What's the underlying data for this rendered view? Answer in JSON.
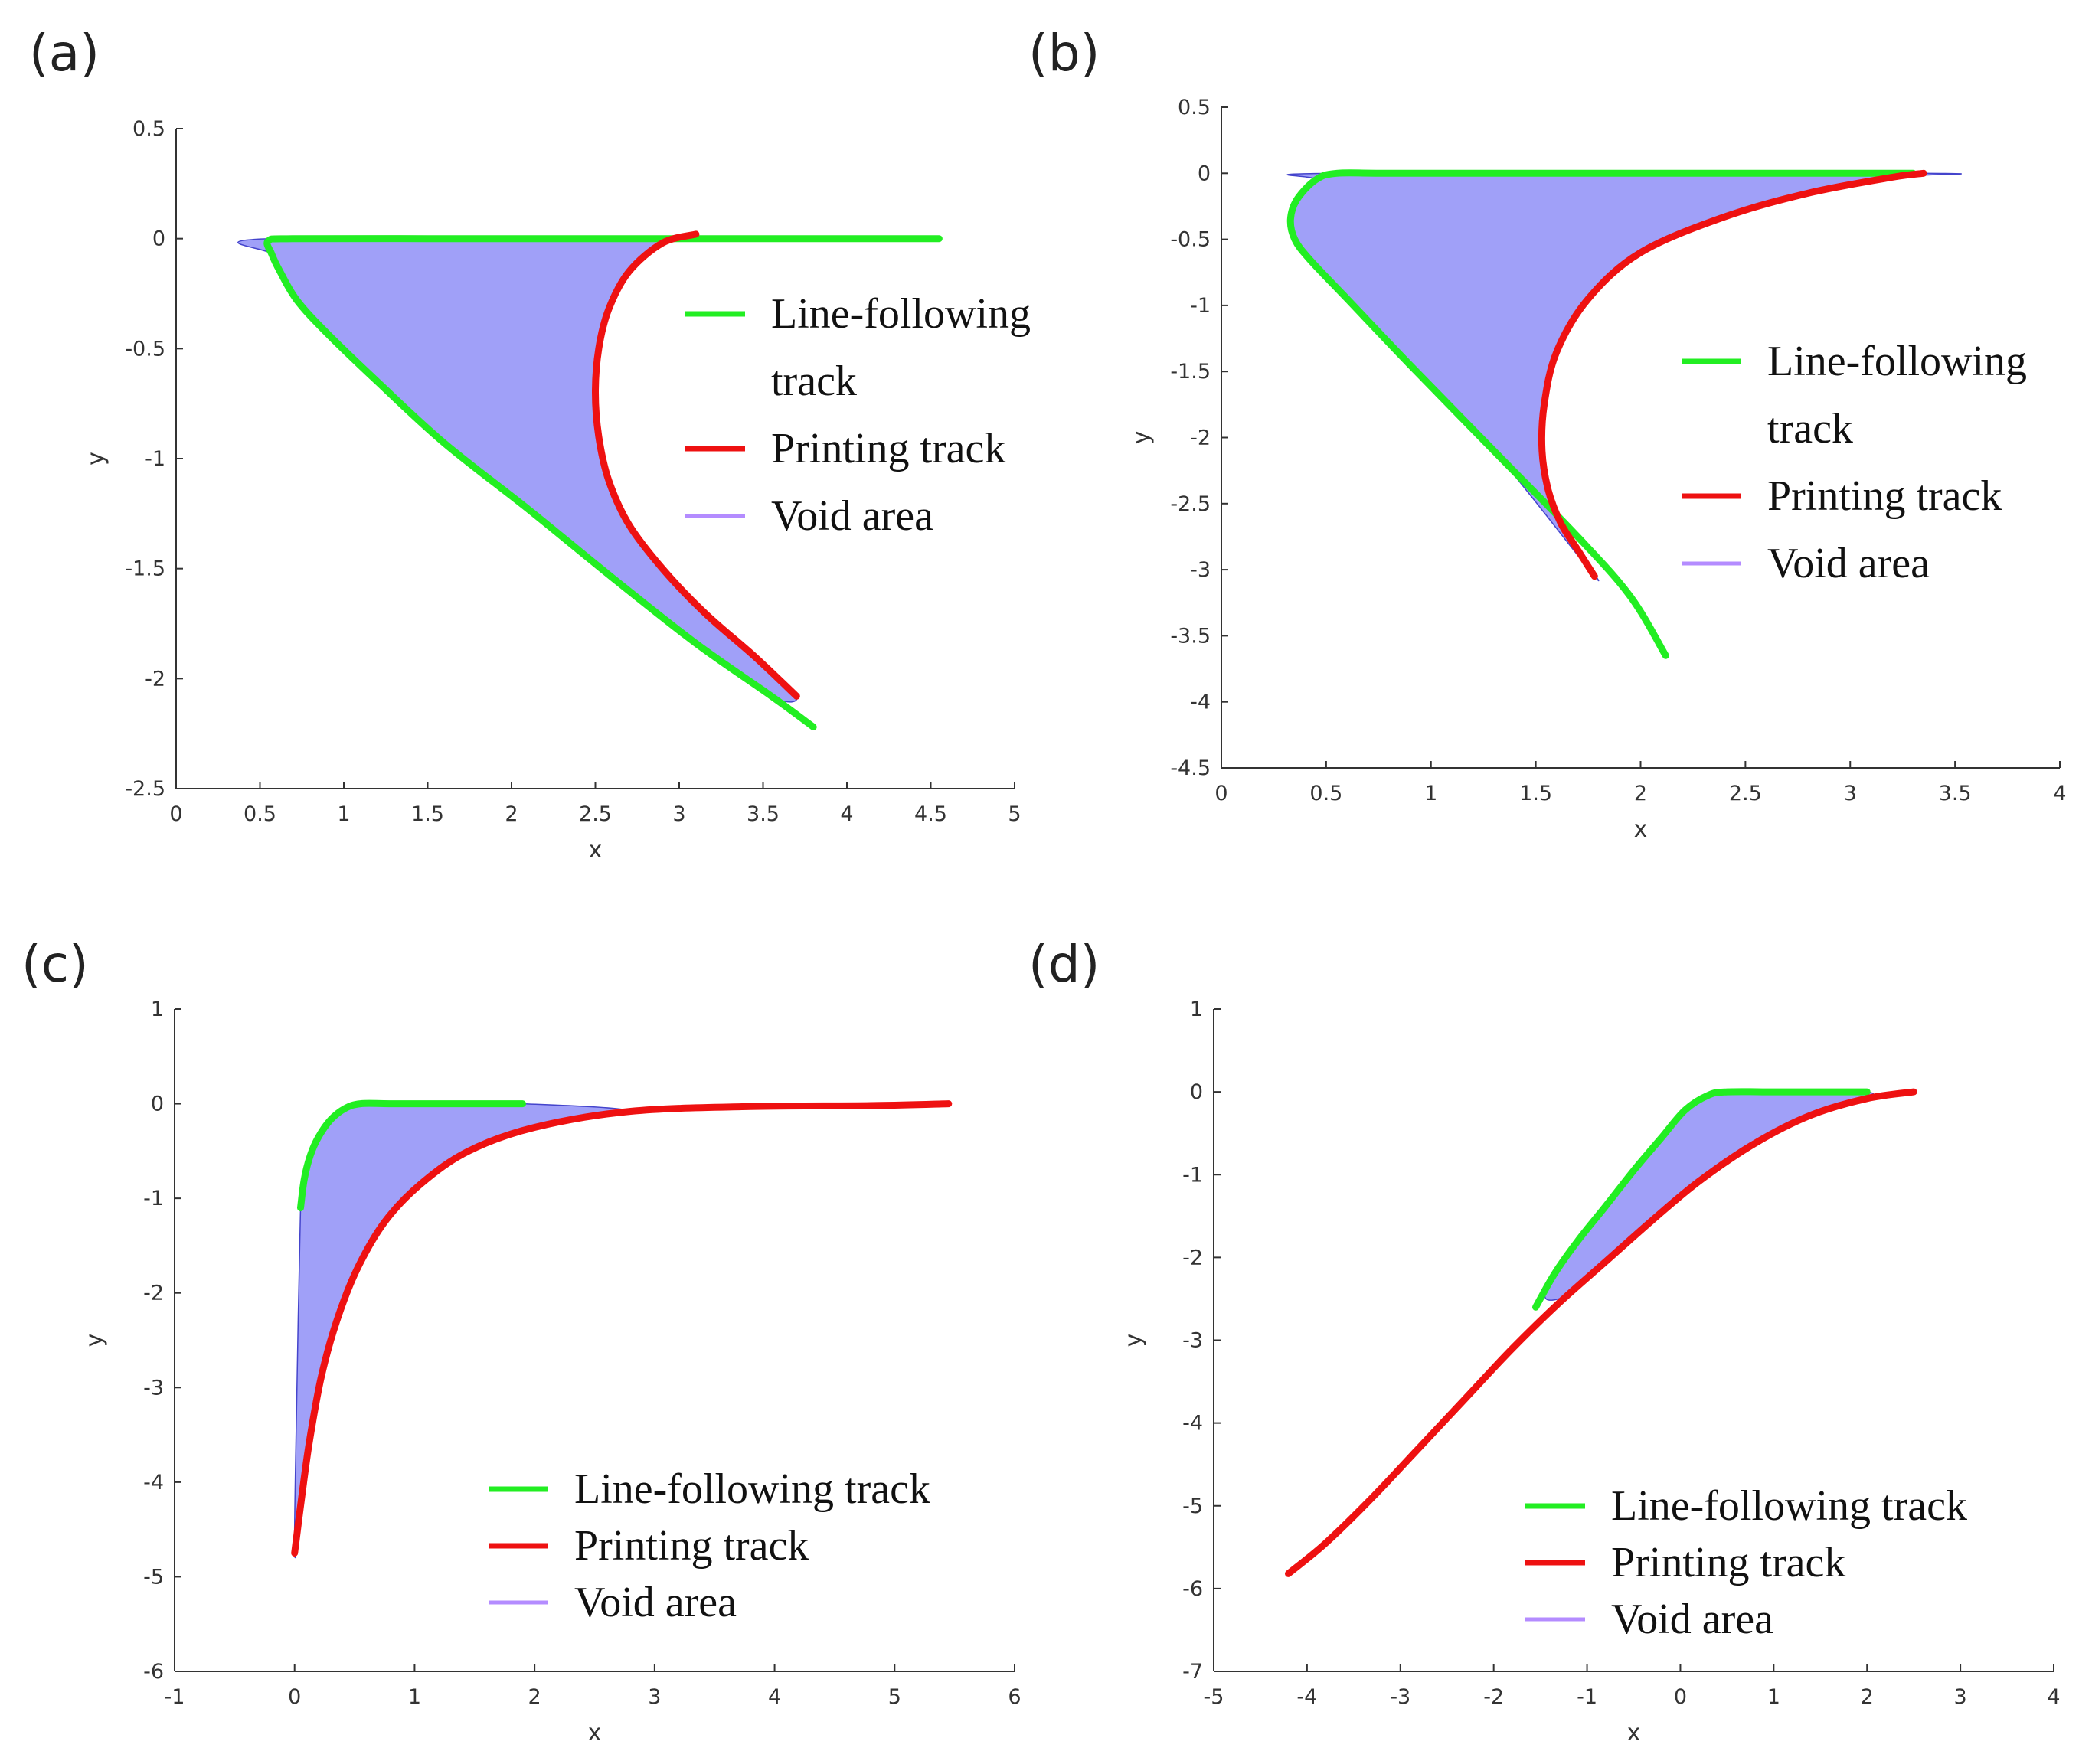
{
  "figure": {
    "colors": {
      "line_following": "#22ee22",
      "printing": "#ee1111",
      "void_fill": "#a0a0f8",
      "void_legend": "#b48cff",
      "axis": "#333333"
    }
  },
  "chart_data": [
    {
      "panel_label": "(a)",
      "type": "line",
      "xlabel": "x",
      "ylabel": "y",
      "xlim": [
        0,
        5
      ],
      "ylim": [
        -2.5,
        0.5
      ],
      "xticks": [
        0,
        0.5,
        1,
        1.5,
        2,
        2.5,
        3,
        3.5,
        4,
        4.5,
        5
      ],
      "yticks": [
        -2.5,
        -2,
        -1.5,
        -1,
        -0.5,
        0,
        0.5
      ],
      "xtick_labels": [
        "0",
        "0.5",
        "1",
        "1.5",
        "2",
        "2.5",
        "3",
        "3.5",
        "4",
        "4.5",
        "5"
      ],
      "ytick_labels": [
        "-2.5",
        "-2",
        "-1.5",
        "-1",
        "-0.5",
        "0",
        "0.5"
      ],
      "legend": {
        "position": "center-right",
        "entries": [
          {
            "key": "line_following",
            "label": [
              "Line-following",
              "track"
            ]
          },
          {
            "key": "printing",
            "label": [
              "Printing track"
            ]
          },
          {
            "key": "void",
            "label": [
              "Void area"
            ]
          }
        ]
      },
      "series": [
        {
          "name": "Line-following track",
          "key": "line_following",
          "x": [
            4.55,
            3.5,
            2.5,
            1.5,
            0.7,
            0.55,
            0.57,
            0.62,
            0.72,
            0.9,
            1.2,
            1.6,
            2.1,
            2.6,
            3.1,
            3.55,
            3.8
          ],
          "y": [
            0,
            0,
            0,
            0,
            0,
            -0.01,
            -0.07,
            -0.15,
            -0.28,
            -0.43,
            -0.65,
            -0.93,
            -1.23,
            -1.54,
            -1.84,
            -2.08,
            -2.22
          ]
        },
        {
          "name": "Printing track",
          "key": "printing",
          "x": [
            3.1,
            2.9,
            2.7,
            2.58,
            2.52,
            2.5,
            2.52,
            2.58,
            2.7,
            2.9,
            3.15,
            3.45,
            3.7
          ],
          "y": [
            0.02,
            -0.02,
            -0.15,
            -0.32,
            -0.5,
            -0.7,
            -0.9,
            -1.1,
            -1.3,
            -1.5,
            -1.7,
            -1.9,
            -2.08
          ]
        }
      ],
      "void": {
        "x": [
          0.55,
          0.57,
          0.62,
          0.72,
          0.9,
          1.2,
          1.6,
          2.1,
          2.6,
          3.1,
          3.55,
          3.7,
          3.45,
          3.15,
          2.9,
          2.7,
          2.58,
          2.52,
          2.5,
          2.52,
          2.58,
          2.7,
          2.9,
          3.05
        ],
        "y": [
          0,
          -0.07,
          -0.15,
          -0.28,
          -0.43,
          -0.65,
          -0.93,
          -1.23,
          -1.54,
          -1.84,
          -2.08,
          -2.08,
          -1.9,
          -1.7,
          -1.5,
          -1.3,
          -1.1,
          -0.9,
          -0.7,
          -0.5,
          -0.32,
          -0.15,
          -0.02,
          0
        ]
      }
    },
    {
      "panel_label": "(b)",
      "type": "line",
      "xlabel": "x",
      "ylabel": "y",
      "xlim": [
        0,
        4
      ],
      "ylim": [
        -4.5,
        0.5
      ],
      "xticks": [
        0,
        0.5,
        1,
        1.5,
        2,
        2.5,
        3,
        3.5,
        4
      ],
      "yticks": [
        -4.5,
        -4,
        -3.5,
        -3,
        -2.5,
        -2,
        -1.5,
        -1,
        -0.5,
        0,
        0.5
      ],
      "xtick_labels": [
        "0",
        "0.5",
        "1",
        "1.5",
        "2",
        "2.5",
        "3",
        "3.5",
        "4"
      ],
      "ytick_labels": [
        "-4.5",
        "-4",
        "-3.5",
        "-3",
        "-2.5",
        "-2",
        "-1.5",
        "-1",
        "-0.5",
        "0",
        "0.5"
      ],
      "legend": {
        "position": "center-right",
        "entries": [
          {
            "key": "line_following",
            "label": [
              "Line-following",
              "track"
            ]
          },
          {
            "key": "printing",
            "label": [
              "Printing track"
            ]
          },
          {
            "key": "void",
            "label": [
              "Void area"
            ]
          }
        ]
      },
      "series": [
        {
          "name": "Line-following track",
          "key": "line_following",
          "x": [
            3.3,
            2.5,
            1.5,
            0.8,
            0.55,
            0.45,
            0.36,
            0.33,
            0.35,
            0.42,
            0.6,
            0.9,
            1.3,
            1.7,
            1.95,
            2.12
          ],
          "y": [
            0,
            0,
            0,
            0,
            0,
            -0.05,
            -0.2,
            -0.35,
            -0.5,
            -0.65,
            -0.95,
            -1.45,
            -2.1,
            -2.75,
            -3.2,
            -3.65
          ]
        },
        {
          "name": "Printing track",
          "key": "printing",
          "x": [
            3.35,
            3.2,
            2.8,
            2.4,
            2.0,
            1.75,
            1.6,
            1.54,
            1.53,
            1.56,
            1.62,
            1.7,
            1.78
          ],
          "y": [
            0,
            -0.03,
            -0.15,
            -0.33,
            -0.6,
            -0.95,
            -1.35,
            -1.75,
            -2.1,
            -2.4,
            -2.65,
            -2.85,
            -3.05
          ]
        }
      ],
      "void": {
        "x": [
          0.55,
          0.45,
          0.36,
          0.33,
          0.35,
          0.42,
          0.6,
          0.9,
          1.3,
          1.78,
          1.7,
          1.62,
          1.56,
          1.53,
          1.54,
          1.6,
          1.75,
          2.0,
          2.4,
          2.8,
          3.2,
          3.35
        ],
        "y": [
          0,
          -0.05,
          -0.2,
          -0.35,
          -0.5,
          -0.65,
          -0.95,
          -1.45,
          -2.1,
          -3.05,
          -2.85,
          -2.65,
          -2.4,
          -2.1,
          -1.75,
          -1.35,
          -0.95,
          -0.6,
          -0.33,
          -0.15,
          -0.03,
          0
        ]
      }
    },
    {
      "panel_label": "(c)",
      "type": "line",
      "xlabel": "x",
      "ylabel": "y",
      "xlim": [
        -1,
        6
      ],
      "ylim": [
        -6,
        1
      ],
      "xticks": [
        -1,
        0,
        1,
        2,
        3,
        4,
        5,
        6
      ],
      "yticks": [
        -6,
        -5,
        -4,
        -3,
        -2,
        -1,
        0,
        1
      ],
      "xtick_labels": [
        "-1",
        "0",
        "1",
        "2",
        "3",
        "4",
        "5",
        "6"
      ],
      "ytick_labels": [
        "-6",
        "-5",
        "-4",
        "-3",
        "-2",
        "-1",
        "0",
        "1"
      ],
      "legend": {
        "position": "bottom-right",
        "entries": [
          {
            "key": "line_following",
            "label": [
              "Line-following track"
            ]
          },
          {
            "key": "printing",
            "label": [
              "Printing track"
            ]
          },
          {
            "key": "void",
            "label": [
              "Void area"
            ]
          }
        ]
      },
      "series": [
        {
          "name": "Line-following track",
          "key": "line_following",
          "x": [
            0.05,
            0.08,
            0.13,
            0.2,
            0.3,
            0.42,
            0.55,
            0.8,
            1.3,
            1.9
          ],
          "y": [
            -1.1,
            -0.8,
            -0.55,
            -0.35,
            -0.17,
            -0.05,
            0,
            0,
            0,
            0
          ]
        },
        {
          "name": "Printing track",
          "key": "printing",
          "x": [
            0,
            0.05,
            0.12,
            0.22,
            0.35,
            0.52,
            0.75,
            1.05,
            1.45,
            2.0,
            2.8,
            3.8,
            4.8,
            5.45
          ],
          "y": [
            -4.75,
            -4.25,
            -3.6,
            -2.9,
            -2.3,
            -1.75,
            -1.25,
            -0.85,
            -0.5,
            -0.25,
            -0.08,
            -0.03,
            -0.02,
            0
          ]
        }
      ],
      "void": {
        "x": [
          0.55,
          0.42,
          0.3,
          0.2,
          0.13,
          0.08,
          0.05,
          0.02,
          0,
          0.05,
          0.12,
          0.22,
          0.35,
          0.52,
          0.75,
          1.05,
          1.45,
          2.0,
          2.8,
          1.9,
          1.3,
          0.8
        ],
        "y": [
          0,
          -0.05,
          -0.17,
          -0.35,
          -0.55,
          -0.8,
          -1.1,
          -3.0,
          -4.75,
          -4.25,
          -3.6,
          -2.9,
          -2.3,
          -1.75,
          -1.25,
          -0.85,
          -0.5,
          -0.25,
          -0.08,
          0,
          0,
          0
        ]
      }
    },
    {
      "panel_label": "(d)",
      "type": "line",
      "xlabel": "x",
      "ylabel": "y",
      "xlim": [
        -5,
        4
      ],
      "ylim": [
        -7,
        1
      ],
      "xticks": [
        -5,
        -4,
        -3,
        -2,
        -1,
        0,
        1,
        2,
        3,
        4
      ],
      "yticks": [
        -7,
        -6,
        -5,
        -4,
        -3,
        -2,
        -1,
        0,
        1
      ],
      "xtick_labels": [
        "-5",
        "-4",
        "-3",
        "-2",
        "-1",
        "0",
        "1",
        "2",
        "3",
        "4"
      ],
      "ytick_labels": [
        "-7",
        "-6",
        "-5",
        "-4",
        "-3",
        "-2",
        "-1",
        "0",
        "1"
      ],
      "legend": {
        "position": "bottom-right",
        "entries": [
          {
            "key": "line_following",
            "label": [
              "Line-following track"
            ]
          },
          {
            "key": "printing",
            "label": [
              "Printing track"
            ]
          },
          {
            "key": "void",
            "label": [
              "Void area"
            ]
          }
        ]
      },
      "series": [
        {
          "name": "Line-following track",
          "key": "line_following",
          "x": [
            -1.55,
            -1.35,
            -1.1,
            -0.8,
            -0.5,
            -0.2,
            0.05,
            0.3,
            0.5,
            1.0,
            1.5,
            2.0
          ],
          "y": [
            -2.6,
            -2.2,
            -1.8,
            -1.38,
            -0.95,
            -0.55,
            -0.22,
            -0.04,
            0,
            0,
            0,
            0
          ]
        },
        {
          "name": "Printing track",
          "key": "printing",
          "x": [
            -4.2,
            -3.8,
            -3.3,
            -2.8,
            -2.3,
            -1.8,
            -1.3,
            -0.8,
            -0.3,
            0.2,
            0.8,
            1.4,
            2.0,
            2.5
          ],
          "y": [
            -5.82,
            -5.45,
            -4.9,
            -4.3,
            -3.7,
            -3.1,
            -2.55,
            -2.05,
            -1.55,
            -1.08,
            -0.62,
            -0.28,
            -0.08,
            0
          ]
        }
      ],
      "void": {
        "x": [
          -1.45,
          -1.1,
          -0.8,
          -0.5,
          -0.2,
          0.05,
          0.3,
          0.5,
          1.0,
          1.5,
          2.0,
          2.0,
          1.4,
          0.8,
          0.2,
          -0.3,
          -0.8,
          -1.2
        ],
        "y": [
          -2.45,
          -1.8,
          -1.38,
          -0.95,
          -0.55,
          -0.22,
          -0.04,
          0,
          0,
          0,
          0,
          -0.08,
          -0.28,
          -0.62,
          -1.08,
          -1.55,
          -2.05,
          -2.45
        ]
      }
    }
  ]
}
